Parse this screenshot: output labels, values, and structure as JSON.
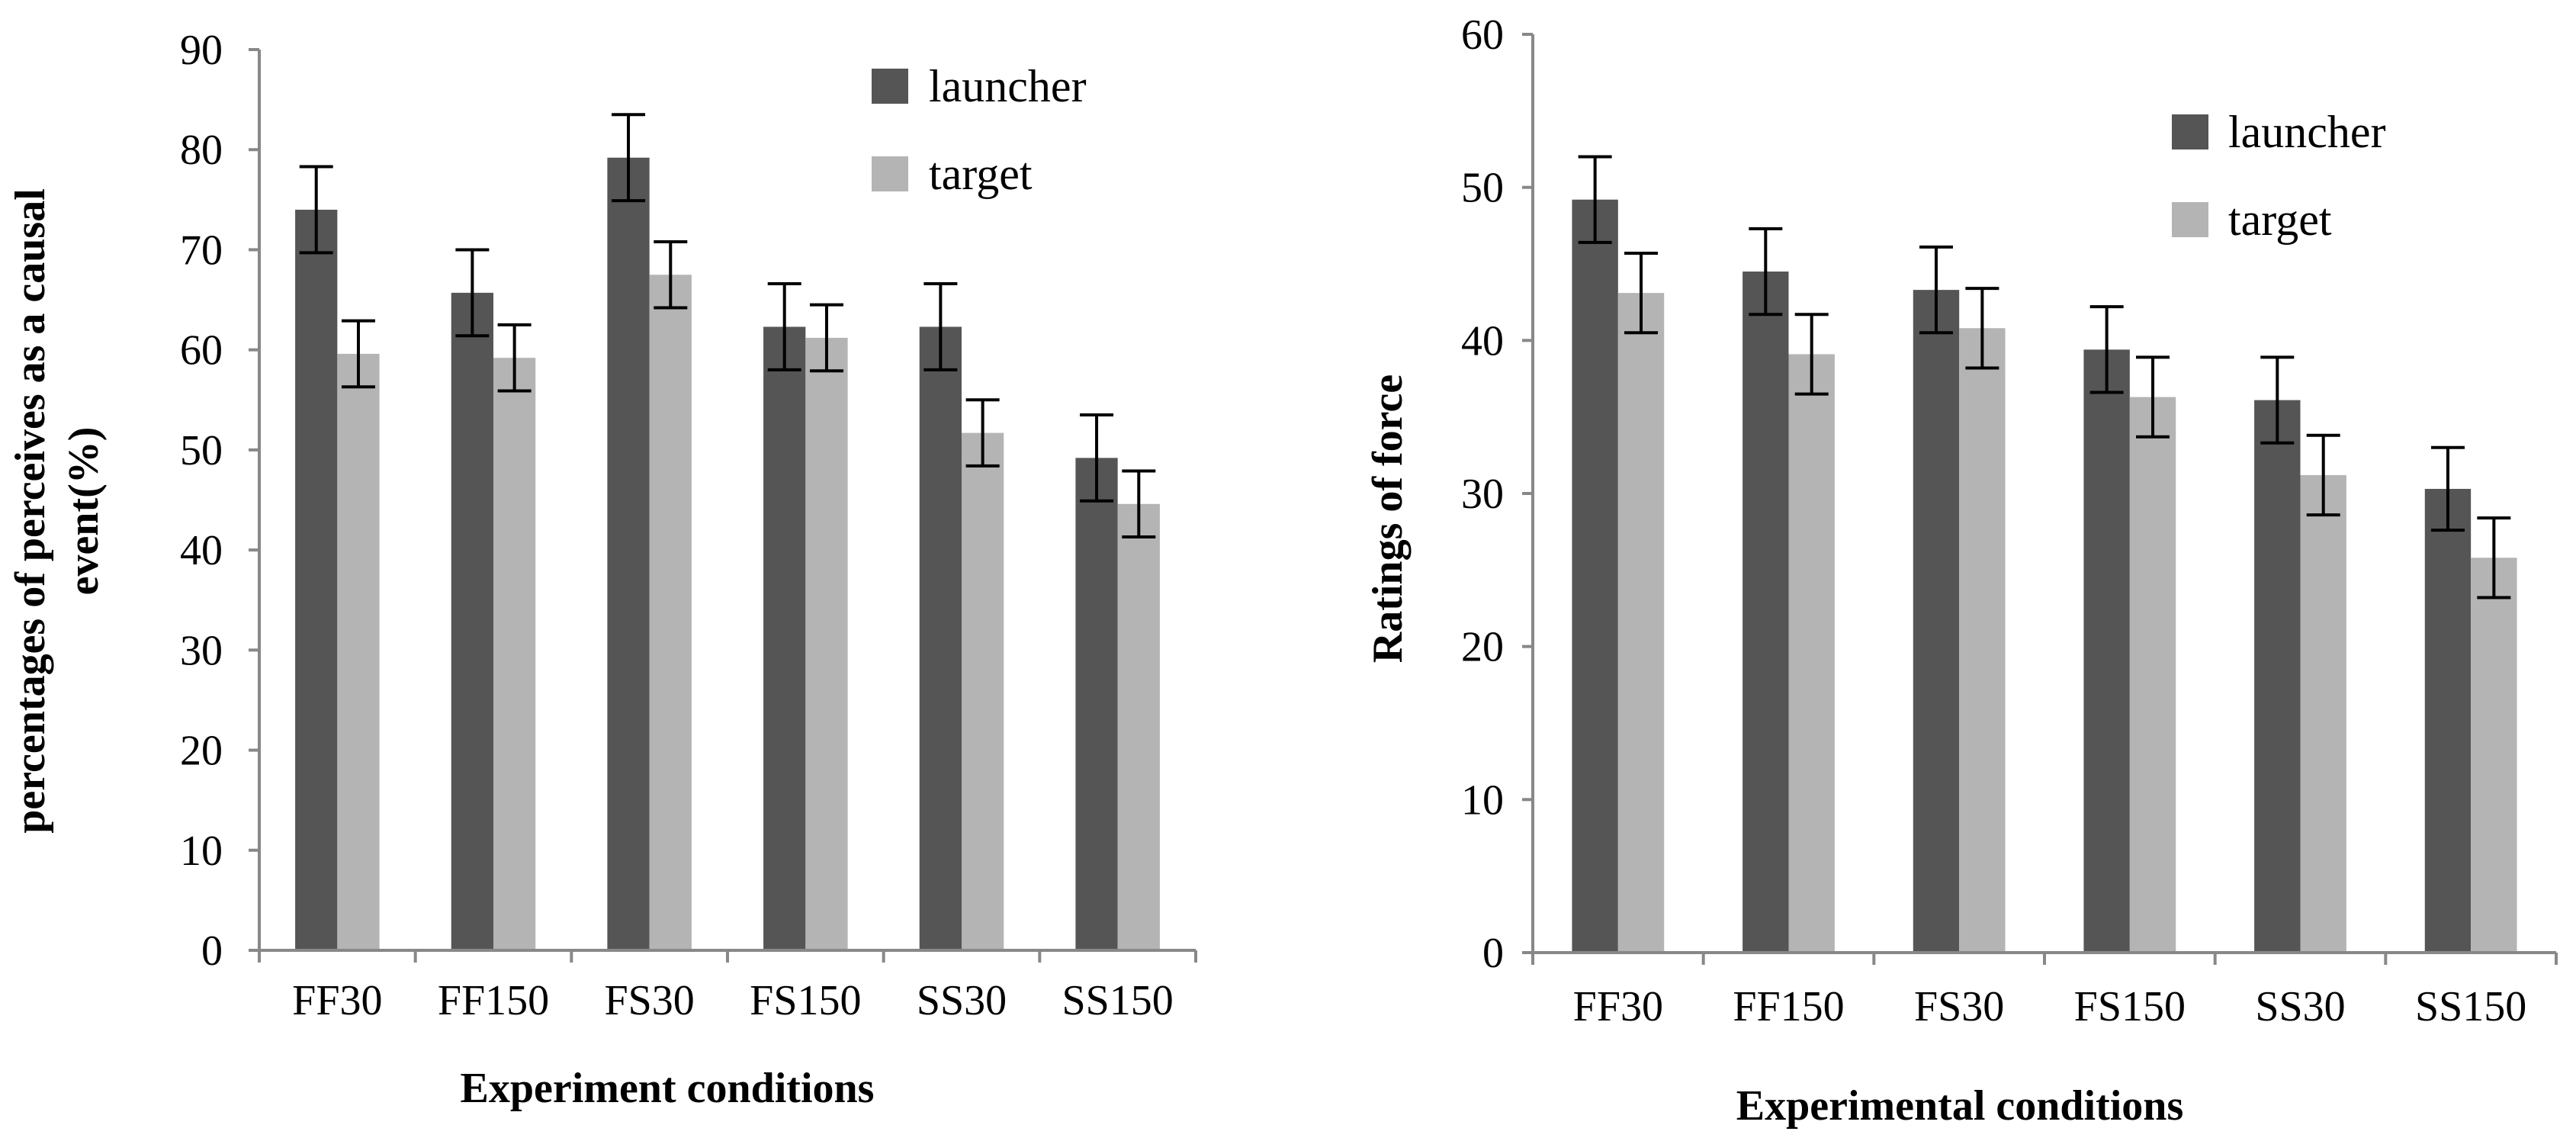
{
  "colors": {
    "launcher": "#555555",
    "target": "#b4b4b4",
    "axis": "#888888",
    "error": "#000000"
  },
  "chart_data": [
    {
      "type": "bar",
      "title": "",
      "categories": [
        "FF30",
        "FF150",
        "FS30",
        "FS150",
        "SS30",
        "SS150"
      ],
      "series": [
        {
          "name": "launcher",
          "values": [
            74,
            65.7,
            79.2,
            62.3,
            62.3,
            49.2
          ],
          "errors": [
            4.3,
            4.3,
            4.3,
            4.3,
            4.3,
            4.3
          ]
        },
        {
          "name": "target",
          "values": [
            59.6,
            59.2,
            67.5,
            61.2,
            51.7,
            44.6
          ],
          "errors": [
            3.3,
            3.3,
            3.3,
            3.3,
            3.3,
            3.3
          ]
        }
      ],
      "xlabel": "Experiment conditions",
      "ylabel_lines": [
        "percentages of perceives as a causal",
        "event(%)"
      ],
      "ylim": [
        0,
        90
      ],
      "yticks": [
        "0",
        "10",
        "20",
        "30",
        "40",
        "50",
        "60",
        "70",
        "80",
        "90"
      ],
      "legend": "top-right",
      "grid": false
    },
    {
      "type": "bar",
      "title": "",
      "categories": [
        "FF30",
        "FF150",
        "FS30",
        "FS150",
        "SS30",
        "SS150"
      ],
      "series": [
        {
          "name": "launcher",
          "values": [
            49.2,
            44.5,
            43.3,
            39.4,
            36.1,
            30.3
          ],
          "errors": [
            2.8,
            2.8,
            2.8,
            2.8,
            2.8,
            2.7
          ]
        },
        {
          "name": "target",
          "values": [
            43.1,
            39.1,
            40.8,
            36.3,
            31.2,
            25.8
          ],
          "errors": [
            2.6,
            2.6,
            2.6,
            2.6,
            2.6,
            2.6
          ]
        }
      ],
      "xlabel": "Experimental conditions",
      "ylabel_lines": [
        "Ratings of force"
      ],
      "ylim": [
        0,
        60
      ],
      "yticks": [
        "0",
        "10",
        "20",
        "30",
        "40",
        "50",
        "60"
      ],
      "legend": "top-right",
      "grid": false
    }
  ]
}
